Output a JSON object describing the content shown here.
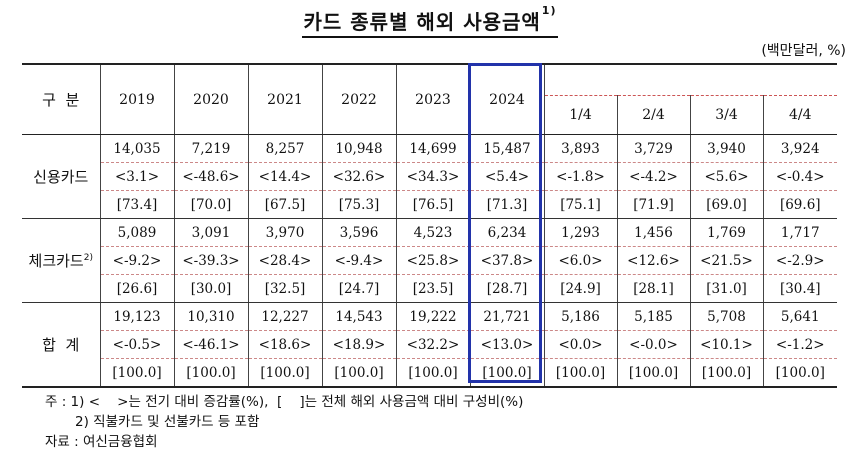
{
  "title": "카드 종류별 해외 사용금액",
  "title_sup": "1)",
  "unit": "(백만달러, %)",
  "header": {
    "category": "구  분",
    "years": [
      "2019",
      "2020",
      "2021",
      "2022",
      "2023",
      "2024"
    ],
    "quarters": [
      "1/4",
      "2/4",
      "3/4",
      "4/4"
    ]
  },
  "groups": [
    {
      "name": "신용카드",
      "sup": "",
      "rows": [
        [
          "14,035",
          "7,219",
          "8,257",
          "10,948",
          "14,699",
          "15,487",
          "3,893",
          "3,729",
          "3,940",
          "3,924"
        ],
        [
          "<3.1>",
          "<-48.6>",
          "<14.4>",
          "<32.6>",
          "<34.3>",
          "<5.4>",
          "<-1.8>",
          "<-4.2>",
          "<5.6>",
          "<-0.4>"
        ],
        [
          "[73.4]",
          "[70.0]",
          "[67.5]",
          "[75.3]",
          "[76.5]",
          "[71.3]",
          "[75.1]",
          "[71.9]",
          "[69.0]",
          "[69.6]"
        ]
      ]
    },
    {
      "name": "체크카드",
      "sup": "2)",
      "rows": [
        [
          "5,089",
          "3,091",
          "3,970",
          "3,596",
          "4,523",
          "6,234",
          "1,293",
          "1,456",
          "1,769",
          "1,717"
        ],
        [
          "<-9.2>",
          "<-39.3>",
          "<28.4>",
          "<-9.4>",
          "<25.8>",
          "<37.8>",
          "<6.0>",
          "<12.6>",
          "<21.5>",
          "<-2.9>"
        ],
        [
          "[26.6]",
          "[30.0]",
          "[32.5]",
          "[24.7]",
          "[23.5]",
          "[28.7]",
          "[24.9]",
          "[28.1]",
          "[31.0]",
          "[30.4]"
        ]
      ]
    },
    {
      "name": "합  계",
      "sup": "",
      "rows": [
        [
          "19,123",
          "10,310",
          "12,227",
          "14,543",
          "19,222",
          "21,721",
          "5,186",
          "5,185",
          "5,708",
          "5,641"
        ],
        [
          "<-0.5>",
          "<-46.1>",
          "<18.6>",
          "<18.9>",
          "<32.2>",
          "<13.0>",
          "<0.0>",
          "<-0.0>",
          "<10.1>",
          "<-1.2>"
        ],
        [
          "[100.0]",
          "[100.0]",
          "[100.0]",
          "[100.0]",
          "[100.0]",
          "[100.0]",
          "[100.0]",
          "[100.0]",
          "[100.0]",
          "[100.0]"
        ]
      ]
    }
  ],
  "notes": [
    "주 : 1) <    >는 전기 대비 증감률(%),  [    ]는 전체 해외 사용금액 대비 구성비(%)",
    "       2) 직불카드 및 선불카드 등 포함",
    "자료 : 여신금융협회"
  ]
}
